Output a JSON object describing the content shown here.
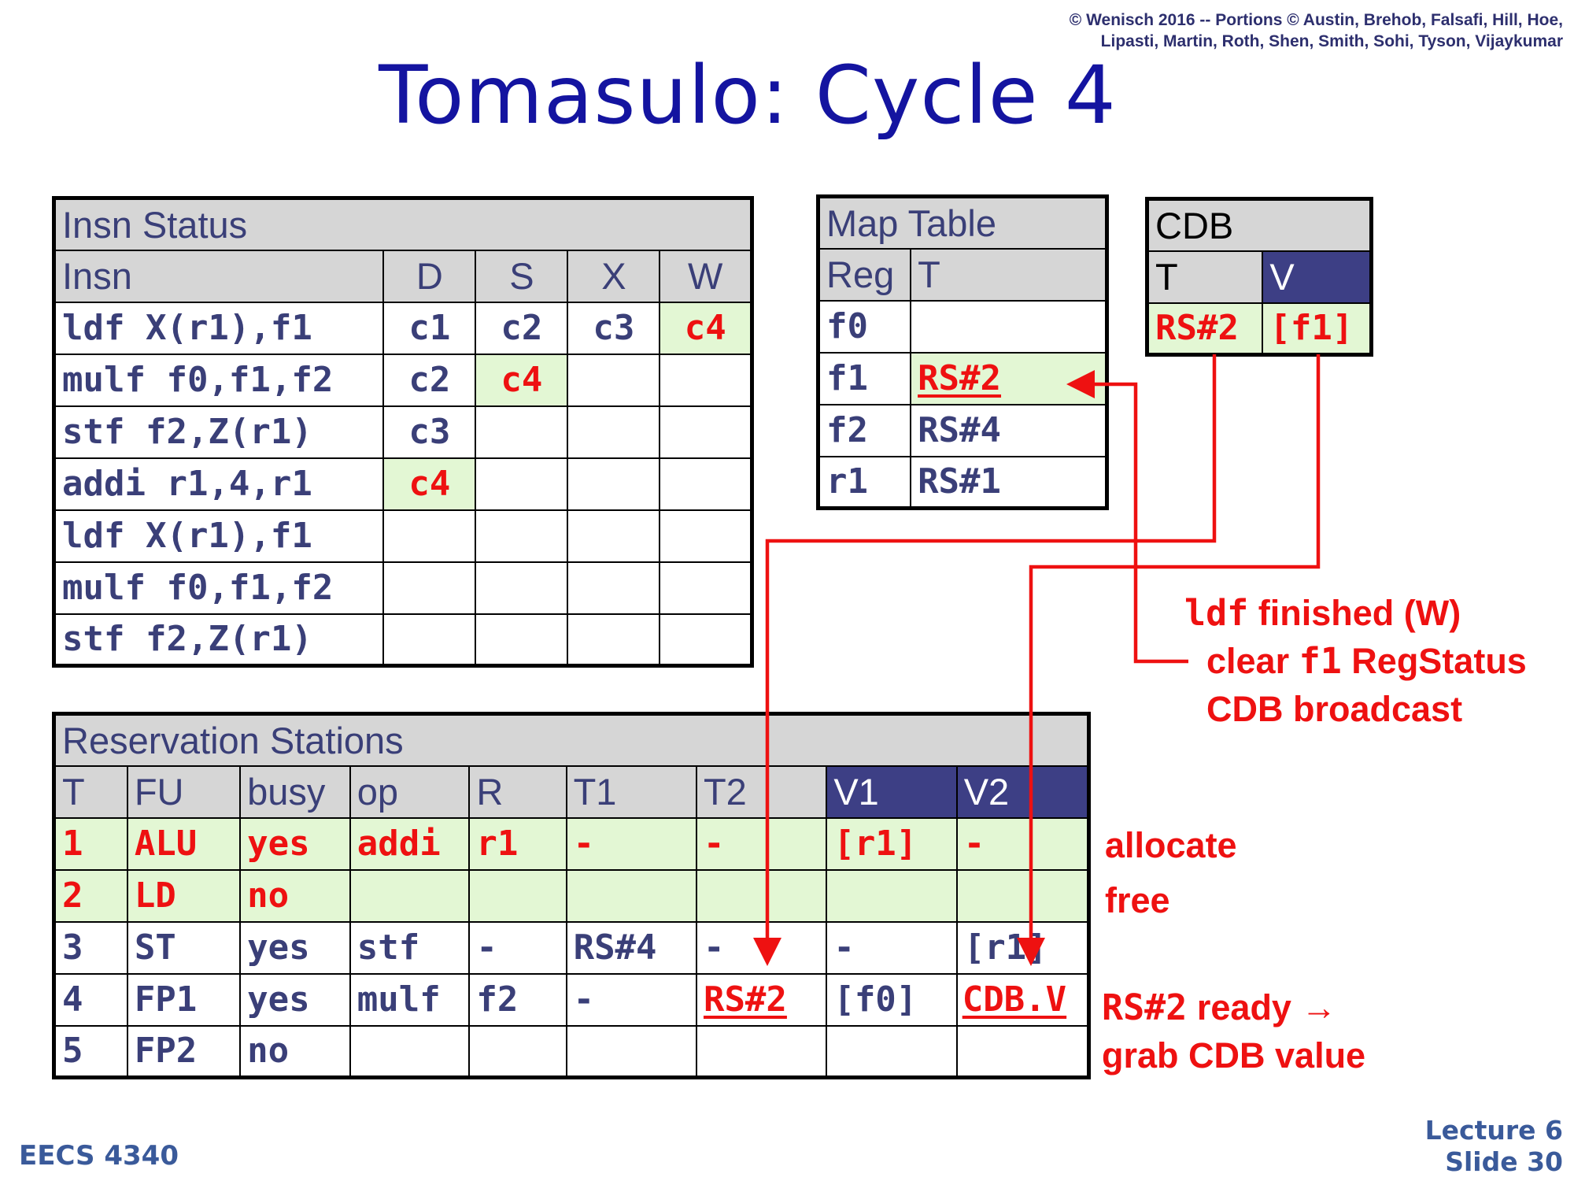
{
  "copyright": [
    "© Wenisch 2016 -- Portions © Austin, Brehob, Falsafi, Hill, Hoe,",
    "Lipasti, Martin, Roth, Shen, Smith, Sohi, Tyson, Vijaykumar"
  ],
  "title": "Tomasulo: Cycle 4",
  "insn_status": {
    "title": "Insn Status",
    "headers": [
      "Insn",
      "D",
      "S",
      "X",
      "W"
    ],
    "rows": [
      [
        "ldf X(r1),f1",
        "c1",
        "c2",
        "c3",
        "c4"
      ],
      [
        "mulf f0,f1,f2",
        "c2",
        "c4",
        "",
        ""
      ],
      [
        "stf f2,Z(r1)",
        "c3",
        "",
        "",
        ""
      ],
      [
        "addi r1,4,r1",
        "c4",
        "",
        "",
        ""
      ],
      [
        "ldf X(r1),f1",
        "",
        "",
        "",
        ""
      ],
      [
        "mulf f0,f1,f2",
        "",
        "",
        "",
        ""
      ],
      [
        "stf f2,Z(r1)",
        "",
        "",
        "",
        ""
      ]
    ]
  },
  "map_table": {
    "title": "Map Table",
    "headers": [
      "Reg",
      "T"
    ],
    "rows": [
      [
        "f0",
        ""
      ],
      [
        "f1",
        "RS#2"
      ],
      [
        "f2",
        "RS#4"
      ],
      [
        "r1",
        "RS#1"
      ]
    ]
  },
  "cdb": {
    "title": "CDB",
    "headers": [
      "T",
      "V"
    ],
    "row": [
      "RS#2",
      "[f1]"
    ]
  },
  "reservation_stations": {
    "title": "Reservation Stations",
    "headers": [
      "T",
      "FU",
      "busy",
      "op",
      "R",
      "T1",
      "T2",
      "V1",
      "V2"
    ],
    "rows": [
      [
        "1",
        "ALU",
        "yes",
        "addi",
        "r1",
        "-",
        "-",
        "[r1]",
        "-"
      ],
      [
        "2",
        "LD",
        "no",
        "",
        "",
        "",
        "",
        "",
        ""
      ],
      [
        "3",
        "ST",
        "yes",
        "stf",
        "-",
        "RS#4",
        "-",
        "-",
        "[r1]"
      ],
      [
        "4",
        "FP1",
        "yes",
        "mulf",
        "f2",
        "-",
        "RS#2",
        "[f0]",
        "CDB.V"
      ],
      [
        "5",
        "FP2",
        "no",
        "",
        "",
        "",
        "",
        "",
        ""
      ]
    ]
  },
  "notes": {
    "ldf_code": "ldf",
    "ldf_rest": " finished (W)",
    "clear_pre": "clear ",
    "clear_code": "f1",
    "clear_post": " RegStatus",
    "cdb_broadcast": "CDB broadcast",
    "allocate": "allocate",
    "free": "free",
    "rs2_code": "RS#2",
    "rs2_rest": " ready →",
    "grab": "grab CDB value"
  },
  "colors": {
    "highlight": "#e3f7d4",
    "accent_red": "#ee1111",
    "header_gray": "#d6d6d6",
    "header_dark": "#3d3f85",
    "title_blue": "#1414a0"
  },
  "footer": {
    "course": "EECS 4340",
    "lecture": "Lecture 6",
    "slide": "Slide 30"
  }
}
